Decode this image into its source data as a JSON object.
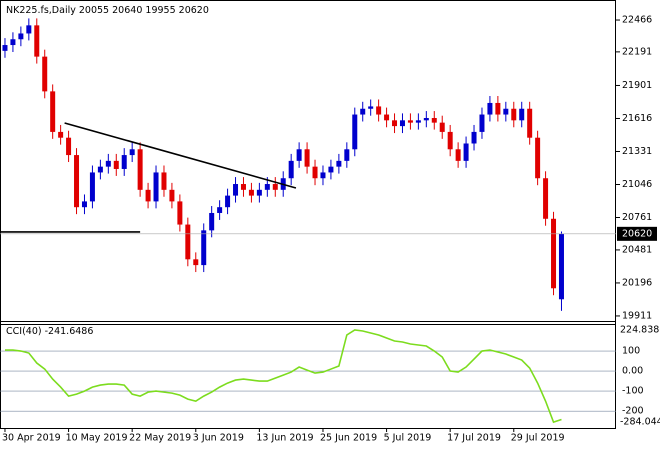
{
  "chart_data": [
    {
      "type": "candlestick",
      "title": "NK225.fs,Daily",
      "categories": [
        "30 Apr 2019",
        null,
        null,
        null,
        null,
        null,
        null,
        null,
        "10 May 2019",
        null,
        null,
        null,
        null,
        null,
        null,
        null,
        "22 May 2019",
        null,
        null,
        null,
        null,
        null,
        null,
        null,
        "3 Jun 2019",
        null,
        null,
        null,
        null,
        null,
        null,
        null,
        "13 Jun 2019",
        null,
        null,
        null,
        null,
        null,
        null,
        null,
        "25 Jun 2019",
        null,
        null,
        null,
        null,
        null,
        null,
        null,
        "5 Jul 2019",
        null,
        null,
        null,
        null,
        null,
        null,
        null,
        "17 Jul 2019",
        null,
        null,
        null,
        null,
        null,
        null,
        null,
        "29 Jul 2019",
        null,
        null,
        null,
        null,
        null,
        null
      ],
      "open": [
        22200,
        22250,
        22300,
        22350,
        22420,
        22150,
        21850,
        21500,
        21450,
        21300,
        20850,
        20900,
        21150,
        21200,
        21250,
        21180,
        21300,
        21350,
        21000,
        20900,
        21150,
        21000,
        20900,
        20700,
        20400,
        20350,
        20650,
        20800,
        20850,
        20950,
        21050,
        21000,
        20950,
        21000,
        21050,
        21000,
        21100,
        21250,
        21350,
        21200,
        21100,
        21150,
        21200,
        21250,
        21350,
        21650,
        21700,
        21720,
        21650,
        21600,
        21550,
        21600,
        21580,
        21600,
        21620,
        21580,
        21500,
        21350,
        21250,
        21400,
        21500,
        21650,
        21750,
        21650,
        21700,
        21600,
        21700,
        21450,
        21100,
        20750,
        20055
      ],
      "high": [
        22310,
        22360,
        22410,
        22480,
        22480,
        22210,
        21910,
        21560,
        21510,
        21360,
        20960,
        21210,
        21260,
        21310,
        21310,
        21360,
        21410,
        21410,
        21060,
        21210,
        21210,
        21060,
        20960,
        20760,
        20460,
        20710,
        20860,
        20910,
        21010,
        21110,
        21110,
        21060,
        21060,
        21110,
        21110,
        21160,
        21310,
        21410,
        21410,
        21260,
        21210,
        21260,
        21310,
        21410,
        21710,
        21760,
        21780,
        21780,
        21710,
        21660,
        21660,
        21660,
        21660,
        21680,
        21680,
        21640,
        21560,
        21410,
        21460,
        21560,
        21710,
        21810,
        21810,
        21760,
        21760,
        21760,
        21760,
        21510,
        21160,
        20810,
        20640
      ],
      "low": [
        22140,
        22190,
        22240,
        22290,
        22090,
        21790,
        21440,
        21390,
        21240,
        20790,
        20790,
        20840,
        21090,
        21140,
        21120,
        21120,
        21240,
        20940,
        20840,
        20840,
        20940,
        20840,
        20640,
        20340,
        20290,
        20290,
        20590,
        20740,
        20790,
        20890,
        20940,
        20890,
        20890,
        20940,
        20940,
        20940,
        21040,
        21190,
        21140,
        21040,
        21040,
        21090,
        21140,
        21190,
        21290,
        21590,
        21640,
        21590,
        21540,
        21490,
        21490,
        21520,
        21520,
        21540,
        21520,
        21440,
        21290,
        21190,
        21190,
        21340,
        21440,
        21590,
        21590,
        21590,
        21540,
        21540,
        21390,
        21040,
        20690,
        20090,
        19955
      ],
      "close": [
        22250,
        22300,
        22350,
        22420,
        22150,
        21850,
        21500,
        21450,
        21300,
        20850,
        20900,
        21150,
        21200,
        21250,
        21180,
        21300,
        21350,
        21000,
        20900,
        21150,
        21000,
        20900,
        20700,
        20400,
        20350,
        20650,
        20800,
        20850,
        20950,
        21050,
        21000,
        20950,
        21000,
        21050,
        21000,
        21100,
        21250,
        21350,
        21200,
        21100,
        21150,
        21200,
        21250,
        21350,
        21650,
        21700,
        21720,
        21650,
        21600,
        21550,
        21600,
        21580,
        21600,
        21620,
        21580,
        21500,
        21350,
        21250,
        21400,
        21500,
        21650,
        21750,
        21650,
        21700,
        21600,
        21700,
        21450,
        21100,
        20750,
        20150,
        20620
      ],
      "up_color": "#0000cd",
      "down_color": "#e00000",
      "trendlines": [
        {
          "x": [
            7.5,
            36.6
          ],
          "y": [
            21577,
            21016
          ],
          "color": "#000000"
        },
        {
          "x": [
            -0.5,
            17
          ],
          "y": [
            20636,
            20636
          ],
          "color": "#000000"
        }
      ],
      "ylim": [
        19876,
        22613
      ],
      "yticks": [
        22466,
        22191,
        21901,
        21616,
        21331,
        21046,
        20761,
        20481,
        20196,
        19911
      ]
    },
    {
      "type": "line",
      "title": "CCI(40)",
      "values": [
        105,
        105,
        100,
        90,
        40,
        10,
        -40,
        -80,
        -125,
        -115,
        -100,
        -80,
        -70,
        -65,
        -65,
        -70,
        -115,
        -125,
        -105,
        -100,
        -105,
        -110,
        -120,
        -140,
        -150,
        -125,
        -105,
        -80,
        -60,
        -45,
        -40,
        -45,
        -50,
        -50,
        -35,
        -20,
        -5,
        20,
        5,
        -10,
        -5,
        10,
        25,
        180,
        205,
        200,
        190,
        180,
        165,
        150,
        145,
        135,
        130,
        125,
        100,
        70,
        0,
        -5,
        20,
        60,
        100,
        105,
        95,
        85,
        70,
        55,
        15,
        -60,
        -150,
        -255,
        -241.6486
      ],
      "color": "#7cdc1e",
      "ylim": [
        -284.044,
        224.8386
      ],
      "yticks": [
        100,
        {
          "value": 0,
          "label": "0.00"
        },
        -100,
        -200
      ]
    }
  ]
}
